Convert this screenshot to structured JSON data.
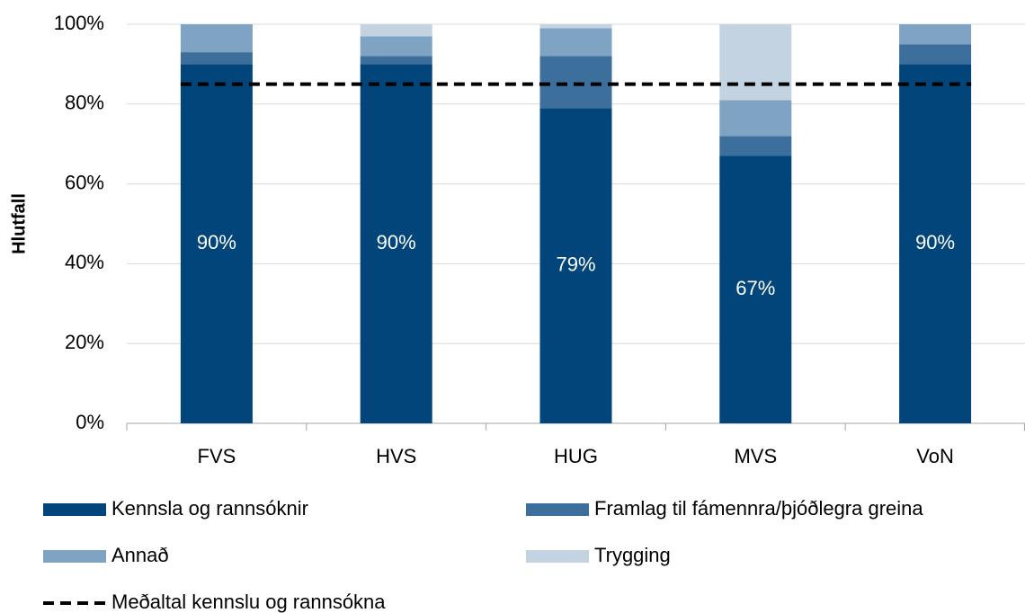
{
  "chart_data": {
    "type": "bar",
    "stacked": true,
    "y_label": "Hlutfall",
    "categories": [
      "FVS",
      "HVS",
      "HUG",
      "MVS",
      "VoN"
    ],
    "series": [
      {
        "name": "Kennsla og rannsóknir",
        "color": "#02457a",
        "values": [
          90,
          90,
          79,
          67,
          90
        ],
        "value_labels": [
          "90%",
          "90%",
          "79%",
          "67%",
          "90%"
        ]
      },
      {
        "name": "Framlag til fámennra/þjóðlegra greina",
        "color": "#3d6f9d",
        "values": [
          3,
          2,
          13,
          5,
          5
        ]
      },
      {
        "name": "Annað",
        "color": "#7ea3c3",
        "values": [
          7,
          5,
          7,
          9,
          5
        ]
      },
      {
        "name": "Trygging",
        "color": "#c3d3e2",
        "values": [
          0,
          3,
          1,
          19,
          0
        ]
      },
      {
        "name": "Meðaltal kennslu og rannsókna",
        "type": "line",
        "color": "#000000",
        "dashed": true,
        "values": [
          85,
          85,
          85,
          85,
          85
        ]
      }
    ],
    "ylim": [
      0,
      100
    ],
    "yticks": [
      {
        "value": 0,
        "label": "0%"
      },
      {
        "value": 20,
        "label": "20%"
      },
      {
        "value": 40,
        "label": "40%"
      },
      {
        "value": 60,
        "label": "60%"
      },
      {
        "value": 80,
        "label": "80%"
      },
      {
        "value": 100,
        "label": "100%"
      }
    ],
    "grid": true
  }
}
